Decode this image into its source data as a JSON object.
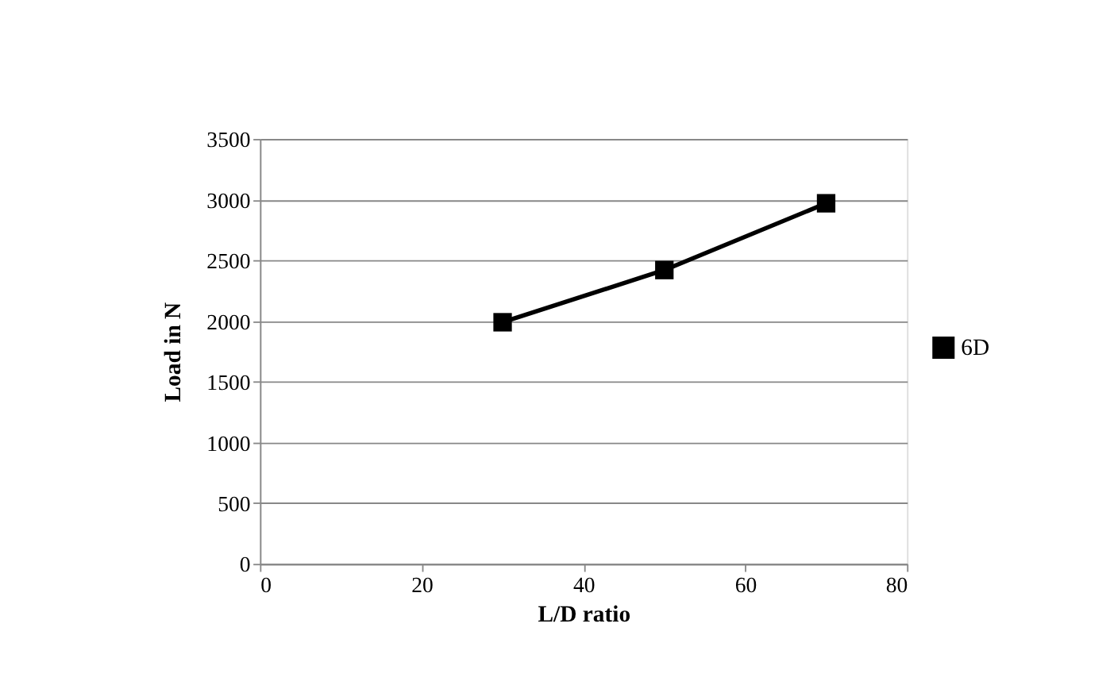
{
  "chart_data": {
    "type": "line",
    "xlabel": "L/D ratio",
    "ylabel": "Load in N",
    "x": [
      30,
      50,
      70
    ],
    "series": [
      {
        "name": "6D",
        "color": "#000000",
        "values": [
          1990,
          2420,
          2970
        ]
      }
    ],
    "xlim": [
      0,
      80
    ],
    "xticks": [
      0,
      20,
      40,
      60,
      80
    ],
    "ylim": [
      0,
      3500
    ],
    "yticks": [
      0,
      500,
      1000,
      1500,
      2000,
      2500,
      3000,
      3500
    ],
    "grid": "y",
    "legend": "right",
    "marker": "square",
    "line_style": "solid"
  }
}
